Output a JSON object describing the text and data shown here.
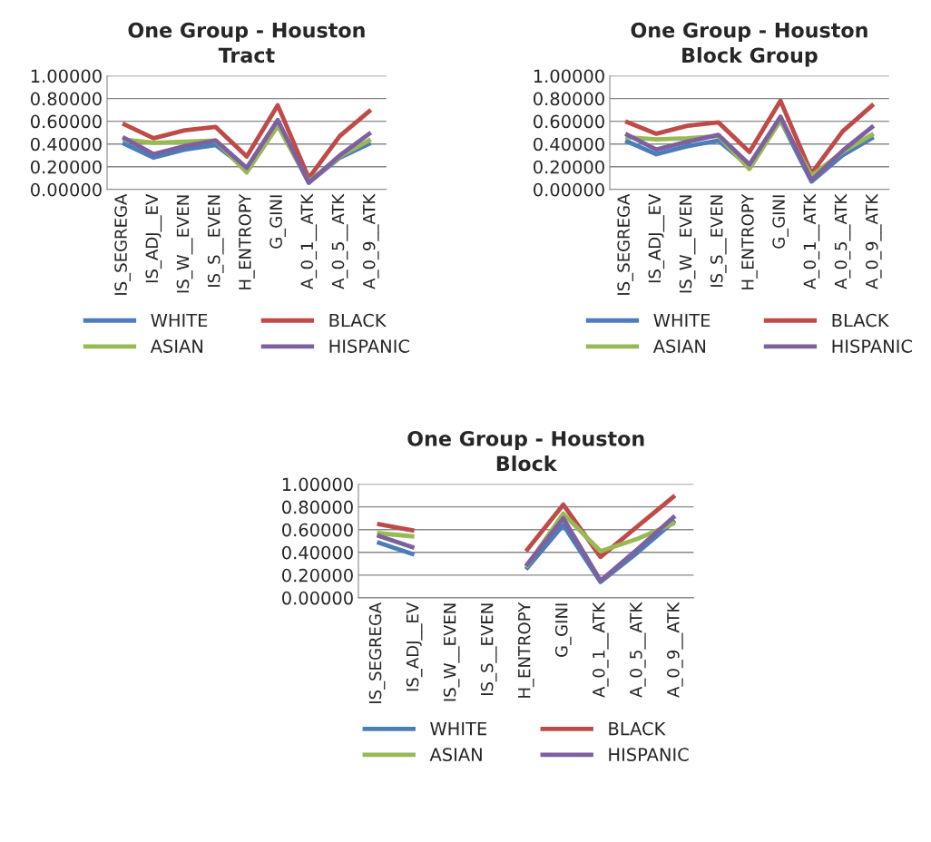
{
  "chart_data": [
    {
      "type": "line",
      "title": "One Group - Houston",
      "subtitle": "Tract",
      "categories": [
        "IS_SEGREGA",
        "IS_ADJ__EV",
        "IS_W__EVEN",
        "IS_S__EVEN",
        "H_ENTROPY",
        "G_GINI",
        "A_0_1__ATK",
        "A_0_5__ATK",
        "A_0_9__ATK"
      ],
      "series": [
        {
          "name": "WHITE",
          "color": "#4a7ebb",
          "values": [
            0.41,
            0.28,
            0.35,
            0.39,
            0.18,
            0.58,
            0.06,
            0.28,
            0.41
          ]
        },
        {
          "name": "BLACK",
          "color": "#be4b48",
          "values": [
            0.58,
            0.45,
            0.52,
            0.55,
            0.29,
            0.74,
            0.1,
            0.47,
            0.7
          ]
        },
        {
          "name": "ASIAN",
          "color": "#98b954",
          "values": [
            0.44,
            0.41,
            0.42,
            0.43,
            0.15,
            0.56,
            0.07,
            0.29,
            0.44
          ]
        },
        {
          "name": "HISPANIC",
          "color": "#7d60a0",
          "values": [
            0.46,
            0.31,
            0.38,
            0.43,
            0.19,
            0.61,
            0.06,
            0.3,
            0.5
          ]
        }
      ],
      "ylim": [
        0,
        1
      ],
      "yticks": [
        {
          "value": 0,
          "label": "0.00000"
        },
        {
          "value": 0.2,
          "label": "0.20000"
        },
        {
          "value": 0.4,
          "label": "0.40000"
        },
        {
          "value": 0.6,
          "label": "0.60000"
        },
        {
          "value": 0.8,
          "label": "0.80000"
        },
        {
          "value": 1,
          "label": "1.00000"
        }
      ],
      "grid": "y",
      "legend": "bottom"
    },
    {
      "type": "line",
      "title": "One Group - Houston",
      "subtitle": "Block Group",
      "categories": [
        "IS_SEGREGA",
        "IS_ADJ__EV",
        "IS_W__EVEN",
        "IS_S__EVEN",
        "H_ENTROPY",
        "G_GINI",
        "A_0_1__ATK",
        "A_0_5__ATK",
        "A_0_9__ATK"
      ],
      "series": [
        {
          "name": "WHITE",
          "color": "#4a7ebb",
          "values": [
            0.43,
            0.31,
            0.38,
            0.43,
            0.2,
            0.61,
            0.07,
            0.3,
            0.46
          ]
        },
        {
          "name": "BLACK",
          "color": "#be4b48",
          "values": [
            0.6,
            0.49,
            0.56,
            0.59,
            0.33,
            0.78,
            0.14,
            0.51,
            0.75
          ]
        },
        {
          "name": "ASIAN",
          "color": "#98b954",
          "values": [
            0.46,
            0.44,
            0.45,
            0.47,
            0.18,
            0.61,
            0.12,
            0.33,
            0.49
          ]
        },
        {
          "name": "HISPANIC",
          "color": "#7d60a0",
          "values": [
            0.49,
            0.35,
            0.42,
            0.48,
            0.22,
            0.64,
            0.08,
            0.34,
            0.56
          ]
        }
      ],
      "ylim": [
        0,
        1
      ],
      "yticks": [
        {
          "value": 0,
          "label": "0.00000"
        },
        {
          "value": 0.2,
          "label": "0.20000"
        },
        {
          "value": 0.4,
          "label": "0.40000"
        },
        {
          "value": 0.6,
          "label": "0.60000"
        },
        {
          "value": 0.8,
          "label": "0.80000"
        },
        {
          "value": 1,
          "label": "1.00000"
        }
      ],
      "grid": "y",
      "legend": "bottom"
    },
    {
      "type": "line",
      "title": "One Group - Houston",
      "subtitle": "Block",
      "categories": [
        "IS_SEGREGA",
        "IS_ADJ__EV",
        "IS_W__EVEN",
        "IS_S__EVEN",
        "H_ENTROPY",
        "G_GINI",
        "A_0_1__ATK",
        "A_0_5__ATK",
        "A_0_9__ATK"
      ],
      "series": [
        {
          "name": "WHITE",
          "color": "#4a7ebb",
          "values": [
            0.49,
            0.38,
            null,
            null,
            0.25,
            0.64,
            0.14,
            0.4,
            0.68
          ]
        },
        {
          "name": "BLACK",
          "color": "#be4b48",
          "values": [
            0.65,
            0.59,
            null,
            null,
            0.41,
            0.82,
            0.36,
            0.63,
            0.9
          ]
        },
        {
          "name": "ASIAN",
          "color": "#98b954",
          "values": [
            0.57,
            0.54,
            null,
            null,
            0.27,
            0.74,
            0.41,
            0.52,
            0.66
          ]
        },
        {
          "name": "HISPANIC",
          "color": "#7d60a0",
          "values": [
            0.55,
            0.44,
            null,
            null,
            0.28,
            0.7,
            0.15,
            0.43,
            0.72
          ]
        }
      ],
      "ylim": [
        0,
        1
      ],
      "yticks": [
        {
          "value": 0,
          "label": "0.00000"
        },
        {
          "value": 0.2,
          "label": "0.20000"
        },
        {
          "value": 0.4,
          "label": "0.40000"
        },
        {
          "value": 0.6,
          "label": "0.60000"
        },
        {
          "value": 0.8,
          "label": "0.80000"
        },
        {
          "value": 1,
          "label": "1.00000"
        }
      ],
      "grid": "y",
      "legend": "bottom"
    }
  ]
}
